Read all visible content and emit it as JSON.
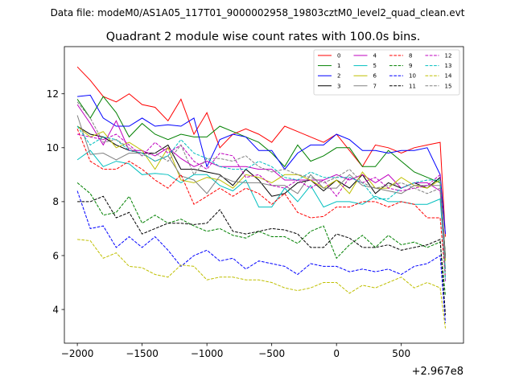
{
  "suptitle": "Data file: modeM0/AS1A05_117T01_9000002958_19803cztM0_level2_quad_clean.evt",
  "chart_data": {
    "type": "line",
    "title": "Quadrant 2 module wise count rates with 100.0s bins.",
    "xlabel": "",
    "ylabel": "",
    "x_offset_label": "+2.967e8",
    "xlim": [
      -2100,
      980
    ],
    "ylim": [
      2.75,
      13.75
    ],
    "xticks": [
      -2000,
      -1500,
      -1000,
      -500,
      0,
      500
    ],
    "xtick_labels": [
      "−2000",
      "−1500",
      "−1000",
      "−500",
      "0",
      "500"
    ],
    "yticks": [
      4,
      6,
      8,
      10,
      12
    ],
    "ytick_labels": [
      "4",
      "6",
      "8",
      "10",
      "12"
    ],
    "legend_position": "top-right",
    "x": [
      -2000,
      -1900,
      -1800,
      -1700,
      -1600,
      -1500,
      -1400,
      -1300,
      -1200,
      -1100,
      -1000,
      -900,
      -800,
      -700,
      -600,
      -500,
      -400,
      -300,
      -200,
      -100,
      0,
      100,
      200,
      300,
      400,
      500,
      600,
      700,
      800,
      840
    ],
    "series": [
      {
        "name": "0",
        "color": "#ff0000",
        "dash": "solid",
        "values": [
          13.0,
          12.5,
          11.9,
          11.7,
          12.0,
          11.6,
          11.5,
          11.0,
          11.8,
          10.5,
          11.3,
          10.0,
          10.5,
          10.7,
          10.5,
          10.2,
          10.8,
          10.6,
          10.4,
          10.2,
          10.5,
          9.9,
          9.3,
          10.1,
          10.0,
          9.8,
          10.0,
          10.1,
          10.2,
          6.7
        ]
      },
      {
        "name": "1",
        "color": "#008000",
        "dash": "solid",
        "values": [
          11.8,
          11.1,
          11.9,
          11.3,
          10.4,
          10.9,
          10.5,
          10.3,
          10.5,
          10.4,
          10.4,
          10.8,
          10.6,
          10.4,
          10.2,
          9.8,
          9.3,
          10.1,
          9.5,
          9.7,
          10.0,
          10.0,
          9.3,
          9.3,
          9.9,
          9.5,
          9.1,
          8.9,
          8.7,
          6.0
        ]
      },
      {
        "name": "2",
        "color": "#0000ff",
        "dash": "solid",
        "values": [
          11.9,
          11.95,
          11.1,
          10.8,
          10.8,
          11.1,
          10.8,
          10.85,
          10.8,
          11.1,
          9.3,
          10.3,
          10.5,
          10.4,
          9.9,
          9.9,
          9.2,
          9.8,
          10.1,
          10.1,
          10.5,
          10.3,
          9.9,
          9.9,
          9.8,
          9.9,
          9.9,
          10.0,
          9.0,
          6.8
        ]
      },
      {
        "name": "3",
        "color": "#000000",
        "dash": "solid",
        "values": [
          10.8,
          10.5,
          10.4,
          10.1,
          9.9,
          9.8,
          9.8,
          10.1,
          9.2,
          9.2,
          9.1,
          9.0,
          8.6,
          9.2,
          8.8,
          8.2,
          8.3,
          8.7,
          8.8,
          8.4,
          8.8,
          8.5,
          9.0,
          8.3,
          8.7,
          8.5,
          8.7,
          8.5,
          8.9,
          5.9
        ]
      },
      {
        "name": "4",
        "color": "#bf00bf",
        "dash": "solid",
        "values": [
          11.6,
          10.9,
          10.1,
          11.0,
          9.9,
          9.9,
          9.7,
          10.0,
          9.6,
          9.3,
          9.5,
          9.3,
          9.3,
          9.3,
          9.2,
          9.2,
          8.8,
          8.8,
          8.8,
          8.8,
          9.0,
          8.8,
          9.0,
          8.7,
          9.0,
          8.5,
          8.7,
          8.7,
          8.4,
          5.9
        ]
      },
      {
        "name": "5",
        "color": "#00bfbf",
        "dash": "solid",
        "values": [
          9.55,
          9.9,
          9.3,
          9.5,
          9.4,
          9.0,
          9.05,
          9.0,
          8.7,
          9.0,
          9.0,
          8.6,
          8.4,
          8.8,
          7.8,
          7.8,
          8.5,
          8.0,
          8.6,
          7.8,
          8.0,
          8.0,
          7.9,
          8.2,
          8.0,
          8.0,
          7.9,
          7.9,
          8.1,
          5.5
        ]
      },
      {
        "name": "6",
        "color": "#bfbf00",
        "dash": "solid",
        "values": [
          10.8,
          10.4,
          10.6,
          10.0,
          10.2,
          9.9,
          9.2,
          10.0,
          8.8,
          8.7,
          8.9,
          8.8,
          8.5,
          9.0,
          8.9,
          8.7,
          9.0,
          9.0,
          8.8,
          8.5,
          8.8,
          8.3,
          9.1,
          8.5,
          8.5,
          8.9,
          8.6,
          8.5,
          8.8,
          5.8
        ]
      },
      {
        "name": "7",
        "color": "#808080",
        "dash": "solid",
        "values": [
          11.2,
          9.75,
          9.8,
          9.55,
          9.8,
          9.8,
          9.5,
          9.7,
          8.95,
          8.8,
          8.3,
          8.95,
          8.75,
          8.7,
          8.7,
          8.6,
          8.6,
          8.3,
          9.0,
          8.5,
          8.5,
          9.0,
          8.6,
          8.5,
          8.4,
          8.3,
          8.6,
          8.6,
          8.6,
          5.9
        ]
      },
      {
        "name": "8",
        "color": "#ff0000",
        "dash": "dashed",
        "values": [
          10.7,
          9.5,
          9.2,
          9.2,
          9.5,
          9.2,
          8.8,
          8.5,
          9.0,
          7.9,
          8.2,
          8.5,
          8.2,
          8.5,
          8.3,
          7.9,
          8.3,
          7.6,
          7.4,
          7.45,
          7.8,
          7.8,
          8.0,
          8.0,
          7.8,
          8.0,
          7.9,
          7.4,
          7.4,
          5.2
        ]
      },
      {
        "name": "9",
        "color": "#008000",
        "dash": "dashed",
        "values": [
          8.7,
          8.3,
          7.5,
          7.6,
          8.2,
          7.2,
          7.5,
          7.2,
          7.35,
          7.1,
          6.9,
          7.0,
          6.75,
          6.65,
          6.9,
          6.7,
          6.7,
          6.45,
          6.9,
          7.1,
          5.9,
          6.4,
          6.75,
          6.3,
          6.75,
          6.4,
          6.5,
          6.3,
          6.5,
          4.5
        ]
      },
      {
        "name": "10",
        "color": "#0000ff",
        "dash": "dashed",
        "values": [
          8.4,
          7.0,
          7.1,
          6.3,
          6.7,
          6.3,
          6.7,
          6.2,
          5.6,
          6.0,
          6.2,
          5.8,
          5.9,
          5.5,
          5.8,
          5.7,
          5.6,
          5.3,
          5.7,
          5.6,
          5.6,
          5.4,
          5.5,
          5.4,
          5.5,
          5.3,
          5.6,
          5.7,
          6.0,
          3.5
        ]
      },
      {
        "name": "11",
        "color": "#000000",
        "dash": "dashed",
        "values": [
          8.0,
          8.0,
          8.2,
          7.4,
          7.6,
          6.8,
          7.0,
          7.2,
          7.2,
          7.15,
          7.2,
          7.7,
          6.9,
          6.8,
          6.9,
          7.0,
          6.95,
          6.8,
          6.3,
          6.3,
          6.8,
          6.65,
          6.3,
          6.3,
          6.4,
          6.2,
          6.3,
          6.4,
          6.6,
          3.8
        ]
      },
      {
        "name": "12",
        "color": "#bf00bf",
        "dash": "dashed",
        "values": [
          10.5,
          10.4,
          10.3,
          10.5,
          10.1,
          9.7,
          10.2,
          9.8,
          10.1,
          9.5,
          9.2,
          9.8,
          9.7,
          8.9,
          9.0,
          8.6,
          8.5,
          8.8,
          8.5,
          8.8,
          8.2,
          8.9,
          8.7,
          8.9,
          8.5,
          8.4,
          8.5,
          8.6,
          9.0,
          5.0
        ]
      },
      {
        "name": "13",
        "color": "#00bfbf",
        "dash": "dashed",
        "values": [
          10.8,
          10.1,
          10.4,
          10.3,
          9.9,
          9.8,
          9.5,
          9.7,
          10.3,
          9.8,
          9.6,
          9.3,
          9.2,
          9.2,
          9.5,
          9.3,
          8.9,
          8.8,
          9.1,
          8.9,
          8.9,
          8.9,
          8.7,
          8.1,
          8.1,
          8.5,
          8.7,
          8.8,
          8.8,
          5.1
        ]
      },
      {
        "name": "14",
        "color": "#bfbf00",
        "dash": "dashed",
        "values": [
          6.6,
          6.55,
          5.9,
          6.1,
          5.6,
          5.55,
          5.3,
          5.2,
          5.65,
          5.6,
          5.1,
          5.2,
          5.2,
          5.1,
          5.1,
          5.0,
          4.8,
          4.7,
          4.8,
          5.0,
          5.0,
          4.6,
          4.9,
          4.8,
          5.0,
          5.2,
          4.8,
          5.0,
          4.8,
          3.3
        ]
      },
      {
        "name": "15",
        "color": "#808080",
        "dash": "dashed",
        "values": [
          11.7,
          11.1,
          10.2,
          10.3,
          10.0,
          9.7,
          9.8,
          9.5,
          10.1,
          9.0,
          9.6,
          9.6,
          9.5,
          9.7,
          9.3,
          9.1,
          9.2,
          9.0,
          8.9,
          8.7,
          8.9,
          9.2,
          8.7,
          8.5,
          8.6,
          8.7,
          8.5,
          8.3,
          8.5,
          5.4
        ]
      }
    ]
  }
}
